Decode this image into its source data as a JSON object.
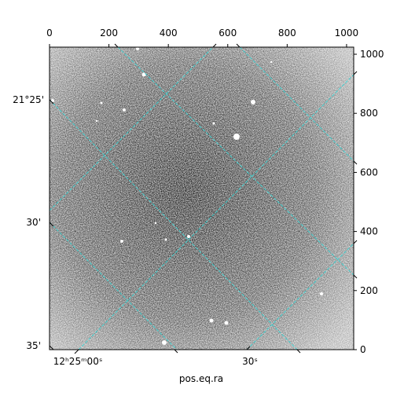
{
  "chart_data": {
    "type": "image",
    "xlabel": "pos.eq.ra",
    "xlim": [
      0,
      1024
    ],
    "ylim": [
      0,
      1024
    ],
    "xticks": [
      0,
      200,
      400,
      600,
      800,
      1000
    ],
    "yticks": [
      0,
      200,
      400,
      600,
      800,
      1000
    ],
    "ra_tick_labels": [
      "12ʰ25ᵐ00ˢ",
      "30ˢ"
    ],
    "dec_tick_labels": [
      "21°25'",
      "30'",
      "35'"
    ],
    "grid_color": "#40d0d0"
  }
}
